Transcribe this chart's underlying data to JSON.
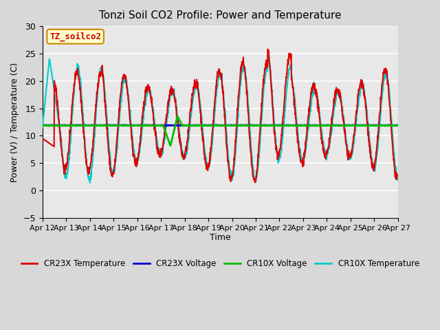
{
  "title": "Tonzi Soil CO2 Profile: Power and Temperature",
  "ylabel": "Power (V) / Temperature (C)",
  "xlabel": "Time",
  "ylim": [
    -5,
    30
  ],
  "yticks": [
    -5,
    0,
    5,
    10,
    15,
    20,
    25,
    30
  ],
  "xlim": [
    0,
    15
  ],
  "xtick_labels": [
    "Apr 12",
    "Apr 13",
    "Apr 14",
    "Apr 15",
    "Apr 16",
    "Apr 17",
    "Apr 18",
    "Apr 19",
    "Apr 20",
    "Apr 21",
    "Apr 22",
    "Apr 23",
    "Apr 24",
    "Apr 25",
    "Apr 26",
    "Apr 27"
  ],
  "bg_color": "#d8d8d8",
  "plot_bg_color": "#e8e8e8",
  "legend_label_box": "TZ_soilco2",
  "legend_box_color": "#ffffcc",
  "legend_box_edge": "#cc8800",
  "cr23x_temp_color": "#dd0000",
  "cr23x_volt_color": "#0000cc",
  "cr10x_volt_color": "#00bb00",
  "cr10x_temp_color": "#00cccc",
  "voltage_level": 11.9,
  "line_width": 1.5
}
